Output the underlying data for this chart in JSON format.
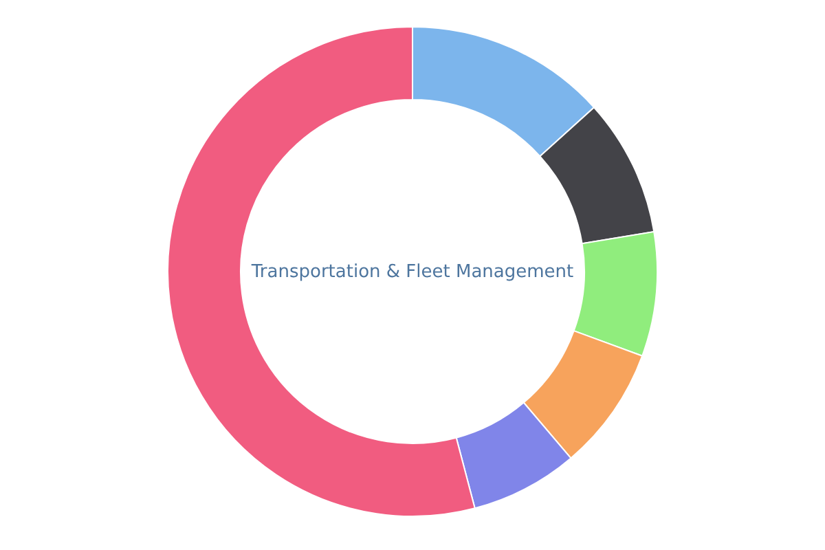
{
  "chart_data": {
    "type": "donut",
    "title": "Transportation & Fleet Management",
    "categories": [
      null,
      null,
      null,
      null,
      null,
      null
    ],
    "values": [
      13.3,
      9.1,
      8.2,
      8.2,
      7.1,
      54.1
    ],
    "colors": [
      "#7cb5ec",
      "#434348",
      "#90ed7d",
      "#f7a35c",
      "#8085e9",
      "#f15c80"
    ]
  }
}
